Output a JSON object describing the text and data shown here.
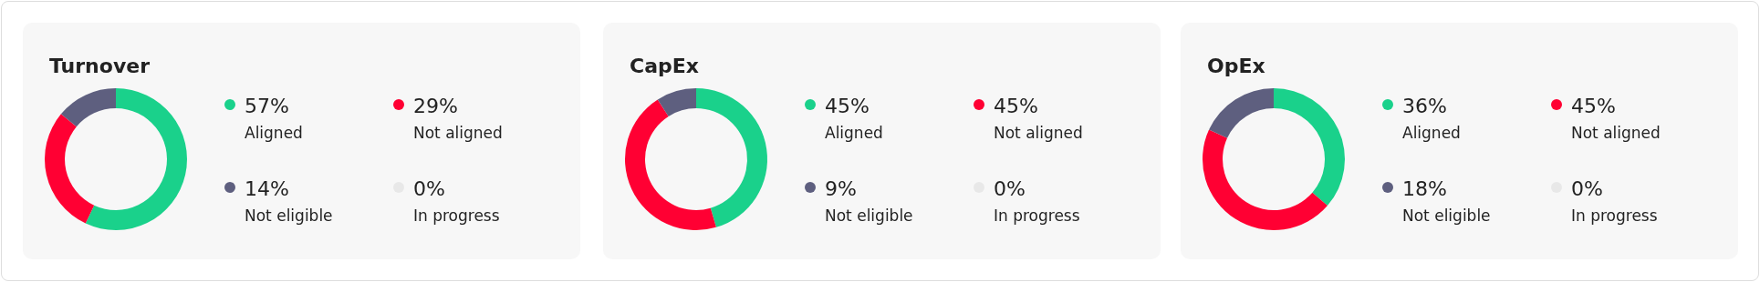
{
  "chart_data": [
    {
      "type": "donut",
      "title": "Turnover",
      "categories": [
        "Aligned",
        "Not aligned",
        "Not eligible",
        "In progress"
      ],
      "values": [
        57,
        29,
        14,
        0
      ],
      "value_labels": [
        "57%",
        "29%",
        "14%",
        "0%"
      ],
      "colors": [
        "#1ad18b",
        "#ff0033",
        "#5e5f7f",
        "#e8e8e8"
      ],
      "legend": "right"
    },
    {
      "type": "donut",
      "title": "CapEx",
      "categories": [
        "Aligned",
        "Not aligned",
        "Not eligible",
        "In progress"
      ],
      "values": [
        45,
        45,
        9,
        0
      ],
      "value_labels": [
        "45%",
        "45%",
        "9%",
        "0%"
      ],
      "colors": [
        "#1ad18b",
        "#ff0033",
        "#5e5f7f",
        "#e8e8e8"
      ],
      "legend": "right"
    },
    {
      "type": "donut",
      "title": "OpEx",
      "categories": [
        "Aligned",
        "Not aligned",
        "Not eligible",
        "In progress"
      ],
      "values": [
        36,
        45,
        18,
        0
      ],
      "value_labels": [
        "36%",
        "45%",
        "18%",
        "0%"
      ],
      "colors": [
        "#1ad18b",
        "#ff0033",
        "#5e5f7f",
        "#e8e8e8"
      ],
      "legend": "right"
    }
  ]
}
